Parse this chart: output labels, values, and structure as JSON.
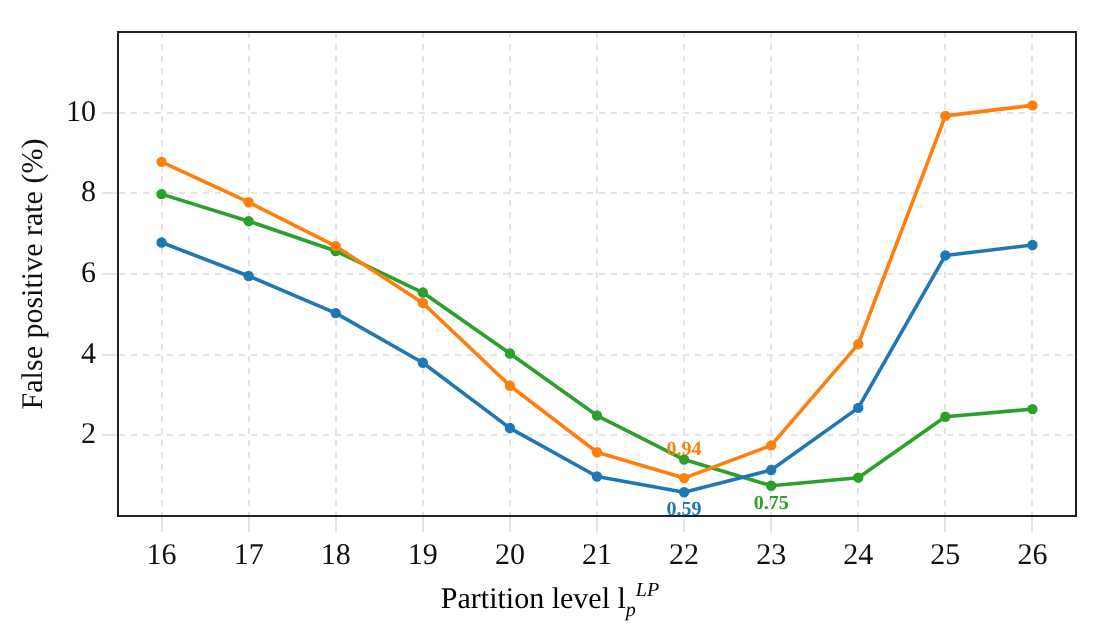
{
  "chart_data": {
    "type": "line",
    "xlabel": "Partition level l$_{p}$$^{LP}$",
    "ylabel": "False positive rate (%)",
    "categories": [
      "16",
      "17",
      "18",
      "19",
      "20",
      "21",
      "22",
      "23",
      "24",
      "25",
      "26"
    ],
    "series": [
      {
        "color": "#1f77b4",
        "values": [
          6.78,
          5.95,
          5.03,
          3.8,
          2.18,
          0.98,
          0.59,
          1.14,
          2.68,
          6.46,
          6.72
        ]
      },
      {
        "color": "#ff7f0e",
        "values": [
          8.78,
          7.78,
          6.69,
          5.28,
          3.23,
          1.58,
          0.94,
          1.75,
          4.26,
          9.92,
          10.18
        ]
      },
      {
        "color": "#2ca02c",
        "values": [
          7.98,
          7.31,
          6.57,
          5.54,
          4.03,
          2.49,
          1.4,
          0.75,
          0.95,
          2.46,
          2.65
        ]
      }
    ],
    "ylim": [
      0,
      12
    ],
    "yticks": [
      2,
      4,
      6,
      8,
      10
    ],
    "grid": true,
    "marker": "circle",
    "line_style": "solid",
    "annotations": [
      {
        "text": "0.59",
        "x": "22",
        "y": 0.59
      },
      {
        "text": "0.94",
        "x": "22",
        "y": 0.94
      },
      {
        "text": "0.75",
        "x": "23",
        "y": 0.75
      }
    ]
  }
}
